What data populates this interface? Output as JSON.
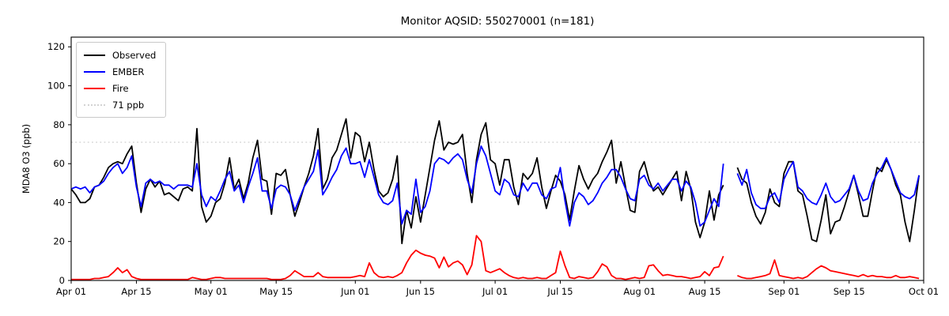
{
  "title": "Monitor AQSID: 550270001 (n=181)",
  "chart_data": {
    "type": "line",
    "title": "Monitor AQSID: 550270001 (n=181)",
    "ylabel": "MDA8 O3 (ppb)",
    "ylim": [
      0,
      125
    ],
    "yticks": [
      0,
      20,
      40,
      60,
      80,
      100,
      120
    ],
    "xlim_days": [
      0,
      183
    ],
    "x_unit": "days since Apr 01",
    "xticks": [
      {
        "day": 0,
        "label": "Apr 01"
      },
      {
        "day": 14,
        "label": "Apr 15"
      },
      {
        "day": 30,
        "label": "May 01"
      },
      {
        "day": 44,
        "label": "May 15"
      },
      {
        "day": 61,
        "label": "Jun 01"
      },
      {
        "day": 75,
        "label": "Jun 15"
      },
      {
        "day": 91,
        "label": "Jul 01"
      },
      {
        "day": 105,
        "label": "Jul 15"
      },
      {
        "day": 122,
        "label": "Aug 01"
      },
      {
        "day": 136,
        "label": "Aug 15"
      },
      {
        "day": 153,
        "label": "Sep 01"
      },
      {
        "day": 167,
        "label": "Sep 15"
      },
      {
        "day": 183,
        "label": "Oct 01"
      }
    ],
    "threshold": {
      "value": 71,
      "label": "71 ppb",
      "color": "#d3d3d3",
      "style": "dotted"
    },
    "legend_position": "upper left",
    "grid": false,
    "series": [
      {
        "name": "Observed",
        "color": "#000000",
        "values": [
          47,
          44,
          40,
          40,
          42,
          48,
          49,
          53,
          58,
          60,
          61,
          60,
          65,
          69,
          50,
          35,
          47,
          52,
          48,
          51,
          44,
          45,
          43,
          41,
          47,
          48,
          46,
          78,
          38,
          30,
          33,
          40,
          42,
          50,
          63,
          47,
          52,
          42,
          50,
          63,
          72,
          52,
          51,
          34,
          55,
          54,
          57,
          44,
          33,
          40,
          48,
          55,
          64,
          78,
          47,
          52,
          63,
          67,
          75,
          83,
          63,
          76,
          74,
          61,
          71,
          57,
          46,
          43,
          45,
          52,
          64,
          19,
          36,
          27,
          43,
          30,
          44,
          58,
          72,
          82,
          67,
          71,
          70,
          71,
          75,
          55,
          40,
          62,
          75,
          81,
          62,
          60,
          49,
          62,
          62,
          48,
          39,
          55,
          52,
          55,
          63,
          48,
          37,
          46,
          54,
          51,
          44,
          31,
          46,
          59,
          52,
          47,
          52,
          55,
          61,
          66,
          72,
          50,
          61,
          48,
          36,
          35,
          56,
          61,
          52,
          46,
          48,
          44,
          48,
          52,
          56,
          41,
          56,
          47,
          30,
          22,
          30,
          46,
          31,
          44,
          49,
          null,
          null,
          58,
          52,
          50,
          40,
          33,
          29,
          35,
          47,
          40,
          38,
          55,
          61,
          61,
          46,
          44,
          33,
          21,
          20,
          31,
          44,
          24,
          30,
          31,
          38,
          46,
          54,
          44,
          33,
          33,
          46,
          58,
          56,
          62,
          57,
          49,
          44,
          30,
          20,
          36,
          54
        ]
      },
      {
        "name": "EMBER",
        "color": "#0000ff",
        "values": [
          47,
          48,
          47,
          48,
          45,
          48,
          49,
          51,
          55,
          58,
          60,
          55,
          58,
          64,
          48,
          38,
          50,
          52,
          50,
          51,
          49,
          49,
          47,
          49,
          49,
          49,
          48,
          60,
          44,
          38,
          43,
          41,
          46,
          52,
          56,
          46,
          49,
          40,
          48,
          55,
          63,
          46,
          46,
          37,
          47,
          49,
          48,
          44,
          36,
          42,
          48,
          52,
          56,
          67,
          44,
          48,
          53,
          57,
          64,
          68,
          60,
          60,
          61,
          53,
          62,
          53,
          44,
          40,
          39,
          41,
          50,
          29,
          36,
          34,
          52,
          35,
          38,
          46,
          60,
          63,
          62,
          60,
          63,
          65,
          62,
          52,
          45,
          60,
          69,
          64,
          55,
          46,
          44,
          52,
          50,
          44,
          43,
          50,
          46,
          50,
          50,
          44,
          42,
          47,
          48,
          58,
          41,
          28,
          40,
          45,
          43,
          39,
          41,
          45,
          50,
          53,
          57,
          57,
          53,
          47,
          42,
          41,
          52,
          54,
          49,
          47,
          50,
          46,
          49,
          52,
          52,
          46,
          51,
          48,
          40,
          28,
          30,
          36,
          42,
          38,
          60,
          null,
          null,
          55,
          49,
          57,
          45,
          39,
          37,
          37,
          43,
          45,
          40,
          52,
          57,
          61,
          48,
          46,
          42,
          40,
          39,
          44,
          50,
          43,
          40,
          41,
          44,
          47,
          54,
          46,
          41,
          42,
          50,
          55,
          58,
          63,
          57,
          51,
          45,
          43,
          42,
          44,
          54
        ]
      },
      {
        "name": "Fire",
        "color": "#ff0000",
        "values": [
          0.5,
          0.5,
          0.5,
          0.5,
          0.5,
          1,
          1,
          1.5,
          2,
          4,
          6.5,
          4,
          5.5,
          2,
          1,
          0.5,
          0.5,
          0.5,
          0.5,
          0.5,
          0.5,
          0.5,
          0.5,
          0.5,
          0.5,
          0.5,
          1.5,
          1,
          0.5,
          0.5,
          1,
          1.5,
          1.5,
          1,
          1,
          1,
          1,
          1,
          1,
          1,
          1,
          1,
          1,
          0.5,
          0.5,
          0.5,
          1,
          2.5,
          5,
          3.5,
          2,
          2,
          2,
          4,
          2,
          1.5,
          1.5,
          1.5,
          1.5,
          1.5,
          1.5,
          2,
          2.5,
          2,
          9,
          4,
          2,
          1.5,
          2,
          1.5,
          2.5,
          4,
          9,
          13,
          15.5,
          14,
          13,
          12.5,
          11.5,
          6.5,
          12,
          7,
          9,
          10,
          8,
          3,
          8,
          23,
          20,
          5,
          4,
          5,
          6,
          4,
          2.5,
          1.5,
          1,
          1.5,
          1,
          1,
          1.5,
          1,
          1,
          2.5,
          4,
          15,
          7.5,
          1.5,
          1,
          2,
          1.5,
          1,
          1.5,
          4.5,
          8.5,
          7,
          2.5,
          1,
          1,
          0.5,
          1,
          1.5,
          1,
          1.5,
          7.5,
          8,
          5,
          2.5,
          3,
          2.5,
          2,
          2,
          1.5,
          1,
          1.5,
          2,
          4.5,
          2.5,
          6.5,
          7,
          12.5,
          null,
          null,
          2.5,
          1.5,
          1,
          1,
          1.5,
          2,
          2.5,
          3.5,
          10.5,
          2.5,
          2,
          1.5,
          1,
          1.5,
          1,
          2,
          4,
          6,
          7.5,
          6.5,
          5,
          4.5,
          4,
          3.5,
          3,
          2.5,
          2,
          3,
          2,
          2.5,
          2,
          2,
          1.5,
          1.5,
          2.5,
          1.5,
          1.5,
          2,
          1.5,
          1
        ]
      }
    ]
  }
}
